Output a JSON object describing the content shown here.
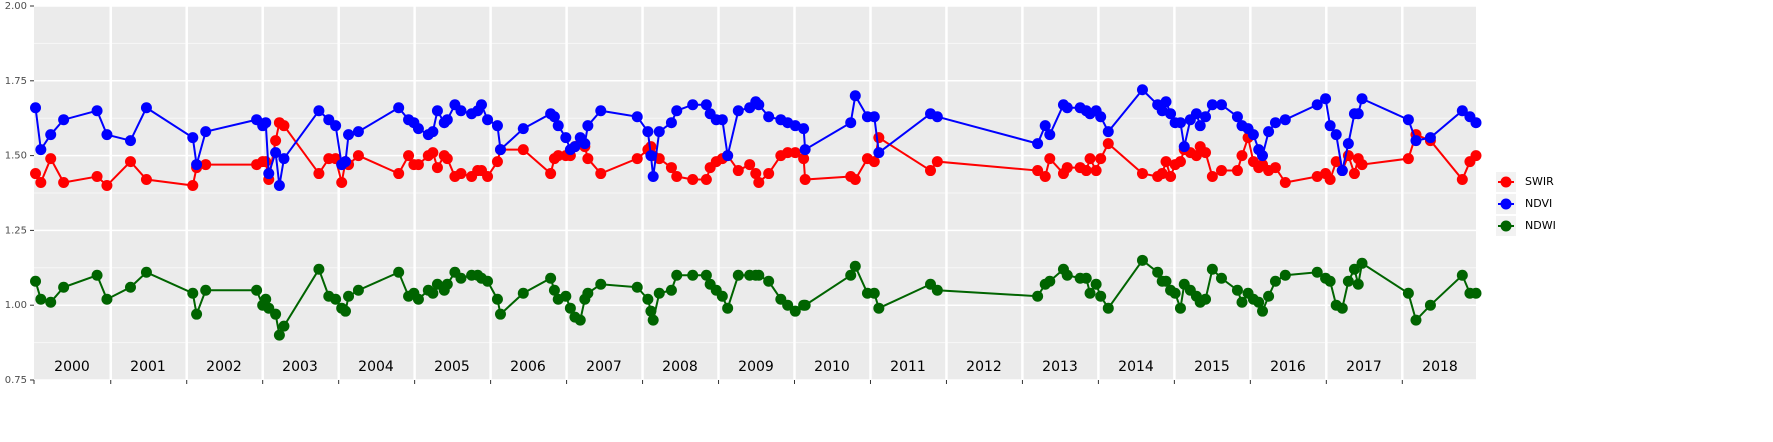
{
  "chart_data": {
    "type": "line",
    "x": [
      2000.01,
      2000.08,
      2000.21,
      2000.38,
      2000.82,
      2000.95,
      2001.26,
      2001.47,
      2002.08,
      2002.13,
      2002.25,
      2002.92,
      2003.0,
      2003.04,
      2003.08,
      2003.17,
      2003.22,
      2003.28,
      2003.74,
      2003.87,
      2003.96,
      2004.04,
      2004.09,
      2004.13,
      2004.26,
      2004.79,
      2004.92,
      2004.99,
      2005.05,
      2005.18,
      2005.24,
      2005.3,
      2005.39,
      2005.43,
      2005.53,
      2005.61,
      2005.75,
      2005.83,
      2005.88,
      2005.96,
      2006.09,
      2006.13,
      2006.43,
      2006.79,
      2006.84,
      2006.89,
      2006.99,
      2007.05,
      2007.11,
      2007.18,
      2007.24,
      2007.28,
      2007.45,
      2007.93,
      2008.07,
      2008.11,
      2008.14,
      2008.22,
      2008.38,
      2008.45,
      2008.66,
      2008.84,
      2008.89,
      2008.97,
      2009.05,
      2009.12,
      2009.26,
      2009.41,
      2009.49,
      2009.53,
      2009.66,
      2009.82,
      2009.91,
      2010.01,
      2010.12,
      2010.14,
      2010.74,
      2010.8,
      2010.96,
      2011.05,
      2011.11,
      2011.79,
      2011.88,
      2013.2,
      2013.3,
      2013.36,
      2013.54,
      2013.59,
      2013.76,
      2013.84,
      2013.89,
      2013.97,
      2014.03,
      2014.13,
      2014.58,
      2014.78,
      2014.84,
      2014.89,
      2014.95,
      2015.01,
      2015.08,
      2015.13,
      2015.21,
      2015.29,
      2015.34,
      2015.41,
      2015.5,
      2015.62,
      2015.83,
      2015.89,
      2015.97,
      2016.04,
      2016.11,
      2016.16,
      2016.24,
      2016.33,
      2016.46,
      2016.88,
      2016.99,
      2017.05,
      2017.13,
      2017.21,
      2017.29,
      2017.37,
      2017.42,
      2017.47,
      2018.08,
      2018.18,
      2018.37,
      2018.79,
      2018.89,
      2018.97
    ],
    "series": [
      {
        "name": "SWIR",
        "color": "#ff0000",
        "values": [
          1.44,
          1.41,
          1.49,
          1.41,
          1.43,
          1.4,
          1.48,
          1.42,
          1.4,
          1.46,
          1.47,
          1.47,
          1.48,
          1.48,
          1.42,
          1.55,
          1.61,
          1.6,
          1.44,
          1.49,
          1.49,
          1.41,
          1.48,
          1.47,
          1.5,
          1.44,
          1.5,
          1.47,
          1.47,
          1.5,
          1.51,
          1.46,
          1.5,
          1.49,
          1.43,
          1.44,
          1.43,
          1.45,
          1.45,
          1.43,
          1.48,
          1.52,
          1.52,
          1.44,
          1.49,
          1.5,
          1.5,
          1.5,
          1.53,
          1.54,
          1.53,
          1.49,
          1.44,
          1.49,
          1.52,
          1.53,
          1.5,
          1.49,
          1.46,
          1.43,
          1.42,
          1.42,
          1.46,
          1.48,
          1.49,
          1.5,
          1.45,
          1.47,
          1.44,
          1.41,
          1.44,
          1.5,
          1.51,
          1.51,
          1.49,
          1.42,
          1.43,
          1.42,
          1.49,
          1.48,
          1.56,
          1.45,
          1.48,
          1.45,
          1.43,
          1.49,
          1.44,
          1.46,
          1.46,
          1.45,
          1.49,
          1.45,
          1.49,
          1.54,
          1.44,
          1.43,
          1.44,
          1.48,
          1.43,
          1.47,
          1.48,
          1.52,
          1.51,
          1.5,
          1.53,
          1.51,
          1.43,
          1.45,
          1.45,
          1.5,
          1.56,
          1.48,
          1.46,
          1.47,
          1.45,
          1.46,
          1.41,
          1.43,
          1.44,
          1.42,
          1.48,
          1.45,
          1.5,
          1.44,
          1.49,
          1.47,
          1.49,
          1.57,
          1.55,
          1.42,
          1.48,
          1.5
        ]
      },
      {
        "name": "NDVI",
        "color": "#0000ff",
        "values": [
          1.66,
          1.52,
          1.57,
          1.62,
          1.65,
          1.57,
          1.55,
          1.66,
          1.56,
          1.47,
          1.58,
          1.62,
          1.6,
          1.61,
          1.44,
          1.51,
          1.4,
          1.49,
          1.65,
          1.62,
          1.6,
          1.47,
          1.48,
          1.57,
          1.58,
          1.66,
          1.62,
          1.61,
          1.59,
          1.57,
          1.58,
          1.65,
          1.61,
          1.62,
          1.67,
          1.65,
          1.64,
          1.65,
          1.67,
          1.62,
          1.6,
          1.52,
          1.59,
          1.64,
          1.63,
          1.6,
          1.56,
          1.52,
          1.53,
          1.56,
          1.54,
          1.6,
          1.65,
          1.63,
          1.58,
          1.5,
          1.43,
          1.58,
          1.61,
          1.65,
          1.67,
          1.67,
          1.64,
          1.62,
          1.62,
          1.5,
          1.65,
          1.66,
          1.68,
          1.67,
          1.63,
          1.62,
          1.61,
          1.6,
          1.59,
          1.52,
          1.61,
          1.7,
          1.63,
          1.63,
          1.51,
          1.64,
          1.63,
          1.54,
          1.6,
          1.57,
          1.67,
          1.66,
          1.66,
          1.65,
          1.64,
          1.65,
          1.63,
          1.58,
          1.72,
          1.67,
          1.65,
          1.68,
          1.64,
          1.61,
          1.61,
          1.53,
          1.62,
          1.64,
          1.6,
          1.63,
          1.67,
          1.67,
          1.63,
          1.6,
          1.59,
          1.57,
          1.52,
          1.5,
          1.58,
          1.61,
          1.62,
          1.67,
          1.69,
          1.6,
          1.57,
          1.45,
          1.54,
          1.64,
          1.64,
          1.69,
          1.62,
          1.55,
          1.56,
          1.65,
          1.63,
          1.61
        ]
      },
      {
        "name": "NDWI",
        "color": "#006400",
        "values": [
          1.08,
          1.02,
          1.01,
          1.06,
          1.1,
          1.02,
          1.06,
          1.11,
          1.04,
          0.97,
          1.05,
          1.05,
          1.0,
          1.02,
          0.99,
          0.97,
          0.9,
          0.93,
          1.12,
          1.03,
          1.02,
          0.99,
          0.98,
          1.03,
          1.05,
          1.11,
          1.03,
          1.04,
          1.02,
          1.05,
          1.04,
          1.07,
          1.05,
          1.07,
          1.11,
          1.09,
          1.1,
          1.1,
          1.09,
          1.08,
          1.02,
          0.97,
          1.04,
          1.09,
          1.05,
          1.02,
          1.03,
          0.99,
          0.96,
          0.95,
          1.02,
          1.04,
          1.07,
          1.06,
          1.02,
          0.98,
          0.95,
          1.04,
          1.05,
          1.1,
          1.1,
          1.1,
          1.07,
          1.05,
          1.03,
          0.99,
          1.1,
          1.1,
          1.1,
          1.1,
          1.08,
          1.02,
          1.0,
          0.98,
          1.0,
          1.0,
          1.1,
          1.13,
          1.04,
          1.04,
          0.99,
          1.07,
          1.05,
          1.03,
          1.07,
          1.08,
          1.12,
          1.1,
          1.09,
          1.09,
          1.04,
          1.07,
          1.03,
          0.99,
          1.15,
          1.11,
          1.08,
          1.08,
          1.05,
          1.04,
          0.99,
          1.07,
          1.05,
          1.03,
          1.01,
          1.02,
          1.12,
          1.09,
          1.05,
          1.01,
          1.04,
          1.02,
          1.01,
          0.98,
          1.03,
          1.08,
          1.1,
          1.11,
          1.09,
          1.08,
          1.0,
          0.99,
          1.08,
          1.12,
          1.07,
          1.14,
          1.04,
          0.95,
          1.0,
          1.1,
          1.04,
          1.04
        ]
      }
    ],
    "xlim": [
      1999.99,
      2018.97
    ],
    "xticks": [
      2001,
      2002,
      2003,
      2004,
      2005,
      2006,
      2007,
      2008,
      2009,
      2010,
      2011,
      2012,
      2013,
      2014,
      2015,
      2016,
      2017,
      2018
    ],
    "ylim": [
      0.75,
      2.0
    ],
    "yticks": [
      {
        "value": 0.75,
        "label": "0.75"
      },
      {
        "value": 1.0,
        "label": "1.00"
      },
      {
        "value": 1.25,
        "label": "1.25"
      },
      {
        "value": 1.5,
        "label": "1.50"
      },
      {
        "value": 1.75,
        "label": "1.75"
      },
      {
        "value": 2.0,
        "label": "2.00"
      }
    ],
    "year_labels": [
      "2000",
      "2001",
      "2002",
      "2003",
      "2004",
      "2005",
      "2006",
      "2007",
      "2008",
      "2009",
      "2010",
      "2011",
      "2012",
      "2013",
      "2014",
      "2015",
      "2016",
      "2017",
      "2018"
    ],
    "grid": true,
    "legend": "right"
  }
}
